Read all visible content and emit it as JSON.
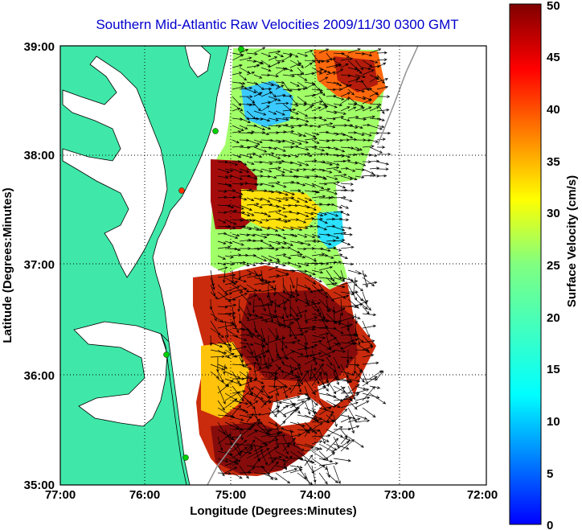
{
  "title": "Southern Mid-Atlantic Raw Velocities 2009/11/30 0300 GMT",
  "x_axis": {
    "label": "Longitude (Degrees:Minutes)",
    "ticks": [
      "77:00",
      "76:00",
      "75:00",
      "74:00",
      "73:00",
      "72:00"
    ]
  },
  "y_axis": {
    "label": "Latitude (Degrees:Minutes)",
    "ticks": [
      "39:00",
      "38:00",
      "37:00",
      "36:00",
      "35:00"
    ]
  },
  "colorbar": {
    "label": "Surface Velocity (cm/s)",
    "ticks": [
      "50",
      "45",
      "40",
      "35",
      "30",
      "25",
      "20",
      "15",
      "10",
      "5",
      "0"
    ]
  },
  "colors": {
    "land": "#3fe8a8",
    "water": "#ffffff",
    "title": "#0000cc",
    "grid": "#000000",
    "station": "#00d000",
    "station_highlight": "#ff3300"
  }
}
